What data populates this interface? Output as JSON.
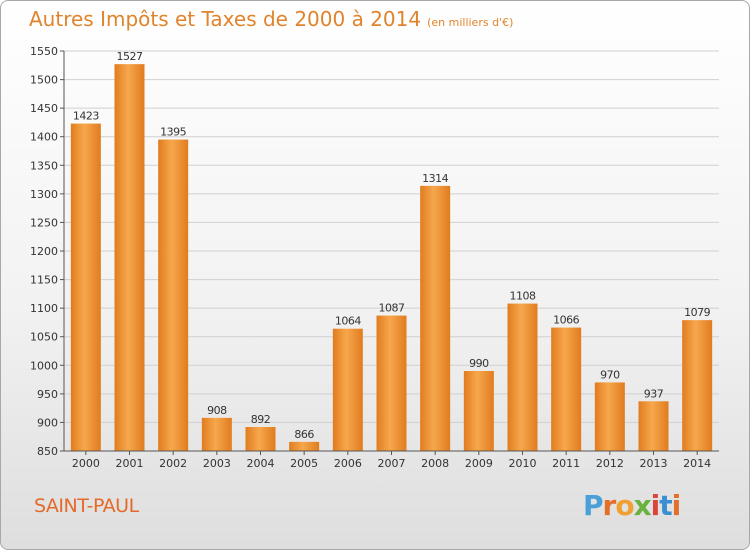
{
  "chart_data": {
    "type": "bar",
    "title": "Autres Impôts et Taxes de 2000 à 2014",
    "unit_label": "(en milliers d'€)",
    "categories": [
      "2000",
      "2001",
      "2002",
      "2003",
      "2004",
      "2005",
      "2006",
      "2007",
      "2008",
      "2009",
      "2010",
      "2011",
      "2012",
      "2013",
      "2014"
    ],
    "values": [
      1423,
      1527,
      1395,
      908,
      892,
      866,
      1064,
      1087,
      1314,
      990,
      1108,
      1066,
      970,
      937,
      1079
    ],
    "data_labels": [
      "1423",
      "1527",
      "1395",
      "908",
      "892",
      "866",
      "1064",
      "1087",
      "1314",
      "990",
      "1108",
      "1066",
      "970",
      "937",
      "1079"
    ],
    "y_ticks": [
      "850",
      "900",
      "950",
      "1000",
      "1050",
      "1100",
      "1150",
      "1200",
      "1250",
      "1300",
      "1350",
      "1400",
      "1450",
      "1500",
      "1550"
    ],
    "ylim": [
      850,
      1550
    ],
    "xlabel": "",
    "ylabel": "",
    "grid": true,
    "bar_color_light": "#f7a74d",
    "bar_color_dark": "#e07c1e",
    "label_color": "#e0842c"
  },
  "footer": {
    "commune": "SAINT-PAUL",
    "brand": "Proxiti",
    "brand_colors": [
      "#4a9fd8",
      "#e36f2b",
      "#f0a030",
      "#6ab23e",
      "#d9463a",
      "#3a8fd0",
      "#e36f2b"
    ]
  }
}
